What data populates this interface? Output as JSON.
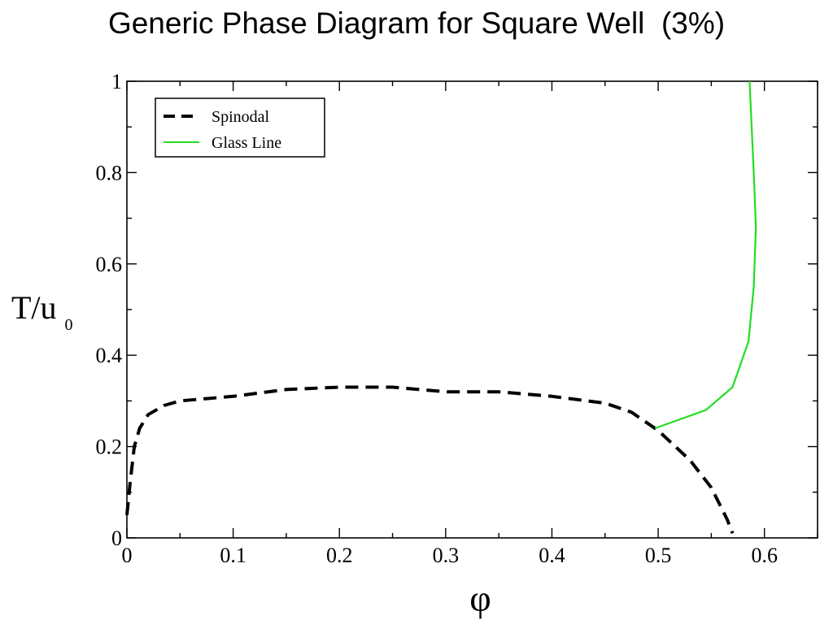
{
  "slide": {
    "title": "Generic Phase Diagram for Square Well  (3%)"
  },
  "chart_data": {
    "type": "line",
    "xlabel": "φ",
    "ylabel": "T/u",
    "ylabel_subscript": "0",
    "xlim": [
      0,
      0.65
    ],
    "ylim": [
      0,
      1
    ],
    "x_ticks": [
      {
        "value": 0,
        "label": "0"
      },
      {
        "value": 0.1,
        "label": "0.1"
      },
      {
        "value": 0.2,
        "label": "0.2"
      },
      {
        "value": 0.3,
        "label": "0.3"
      },
      {
        "value": 0.4,
        "label": "0.4"
      },
      {
        "value": 0.5,
        "label": "0.5"
      },
      {
        "value": 0.6,
        "label": "0.6"
      }
    ],
    "y_ticks": [
      {
        "value": 0,
        "label": "0"
      },
      {
        "value": 0.2,
        "label": "0.2"
      },
      {
        "value": 0.4,
        "label": "0.4"
      },
      {
        "value": 0.6,
        "label": "0.6"
      },
      {
        "value": 0.8,
        "label": "0.8"
      },
      {
        "value": 1,
        "label": "1"
      }
    ],
    "grid": false,
    "legend_position": "top-left",
    "series": [
      {
        "name": "Spinodal",
        "color": "#000000",
        "style": "dashed",
        "points": [
          [
            0.0,
            0.05
          ],
          [
            0.003,
            0.12
          ],
          [
            0.007,
            0.2
          ],
          [
            0.012,
            0.24
          ],
          [
            0.02,
            0.27
          ],
          [
            0.035,
            0.29
          ],
          [
            0.05,
            0.3
          ],
          [
            0.1,
            0.31
          ],
          [
            0.15,
            0.325
          ],
          [
            0.2,
            0.33
          ],
          [
            0.25,
            0.33
          ],
          [
            0.3,
            0.32
          ],
          [
            0.35,
            0.32
          ],
          [
            0.4,
            0.31
          ],
          [
            0.45,
            0.295
          ],
          [
            0.475,
            0.275
          ],
          [
            0.5,
            0.235
          ],
          [
            0.53,
            0.17
          ],
          [
            0.55,
            0.11
          ],
          [
            0.565,
            0.04
          ],
          [
            0.57,
            0.01
          ]
        ]
      },
      {
        "name": "Glass Line",
        "color": "#22dd22",
        "style": "solid",
        "points": [
          [
            0.497,
            0.24
          ],
          [
            0.545,
            0.28
          ],
          [
            0.57,
            0.33
          ],
          [
            0.585,
            0.43
          ],
          [
            0.59,
            0.55
          ],
          [
            0.592,
            0.68
          ],
          [
            0.59,
            0.8
          ],
          [
            0.588,
            0.9
          ],
          [
            0.586,
            1.0
          ]
        ]
      }
    ]
  }
}
